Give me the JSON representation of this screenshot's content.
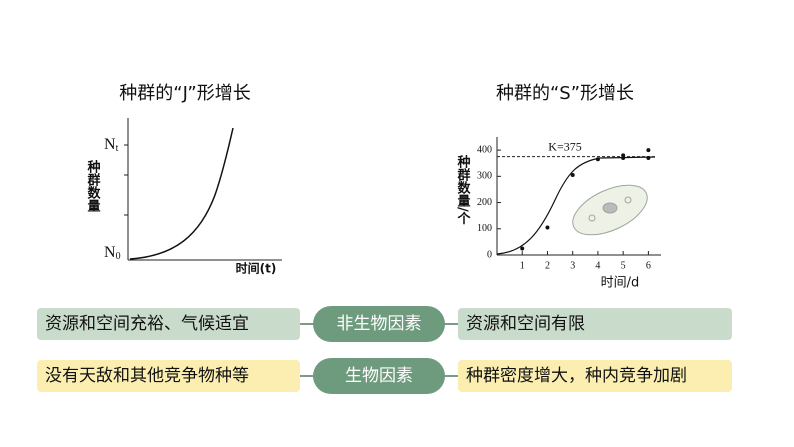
{
  "chart_data": [
    {
      "type": "line",
      "title": "种群的“J”形增长",
      "y_label": "种群数量",
      "x_label": "时间(t)",
      "y_marks": [
        {
          "main": "N",
          "sub": "t"
        },
        {
          "main": "N",
          "sub": "0"
        }
      ]
    },
    {
      "type": "scatter",
      "title": "种群的“S”形增长",
      "y_label": "种群数量/个",
      "x_label": "时间/d",
      "x": [
        1,
        2,
        3,
        4,
        5,
        5,
        6,
        6
      ],
      "values": [
        25,
        105,
        305,
        365,
        370,
        380,
        400,
        370
      ],
      "color": "#111",
      "xlim": [
        0,
        6.5
      ],
      "ylim": [
        0,
        450
      ],
      "xticks": [
        1,
        2,
        3,
        4,
        5,
        6
      ],
      "yticks": [
        0,
        100,
        200,
        300,
        400
      ],
      "annotation": {
        "label": "K=375",
        "value": 375
      }
    }
  ],
  "comparison": {
    "rows": [
      {
        "left": "资源和空间充裕、气候适宜",
        "factor": "非生物因素",
        "right": "资源和空间有限",
        "color": "#c9dccb"
      },
      {
        "left": "没有天敌和其他竞争物种等",
        "factor": "生物因素",
        "right": "种群密度增大，种内竞争加剧",
        "color": "#fbeeb0"
      }
    ]
  }
}
